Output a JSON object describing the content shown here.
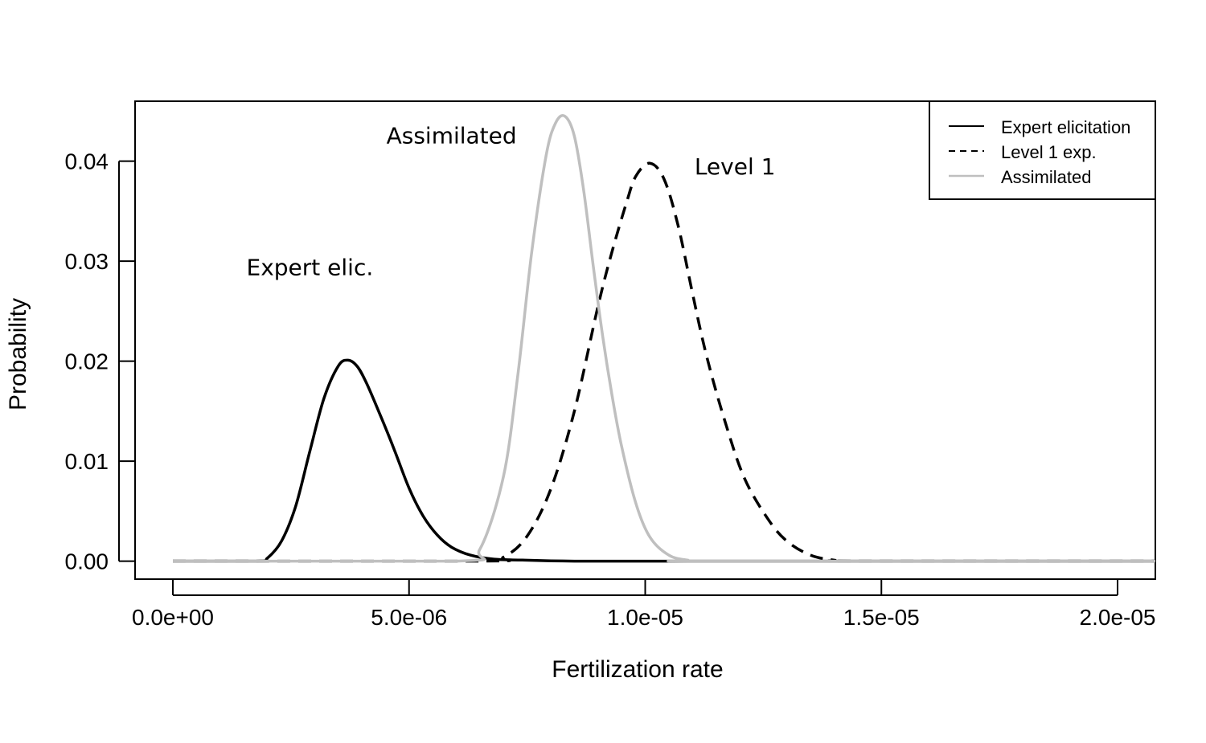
{
  "chart_data": {
    "type": "line",
    "xlabel": "Fertilization rate",
    "ylabel": "Probability",
    "xlim": [
      -8e-07,
      2.08e-05
    ],
    "ylim": [
      -0.0018,
      0.046
    ],
    "xticks": [
      0,
      5e-06,
      1e-05,
      1.5e-05,
      2e-05
    ],
    "xtick_labels": [
      "0.0e+00",
      "5.0e-06",
      "1.0e-05",
      "1.5e-05",
      "2.0e-05"
    ],
    "yticks": [
      0,
      0.01,
      0.02,
      0.03,
      0.04
    ],
    "ytick_labels": [
      "0.00",
      "0.01",
      "0.02",
      "0.03",
      "0.04"
    ],
    "grid": false,
    "legend_position": "top-right",
    "series": [
      {
        "name": "Expert elicitation",
        "color": "#000000",
        "style": "solid",
        "x": [
          0,
          1.8e-06,
          2e-06,
          2.3e-06,
          2.6e-06,
          2.9e-06,
          3.2e-06,
          3.5e-06,
          3.7e-06,
          3.9e-06,
          4.1e-06,
          4.4e-06,
          4.7e-06,
          5e-06,
          5.3e-06,
          5.6e-06,
          5.9e-06,
          6.3e-06,
          6.8e-06,
          7.4e-06,
          8.5e-06,
          1.1e-05,
          2.08e-05
        ],
        "y": [
          0,
          0,
          0.0003,
          0.002,
          0.0055,
          0.011,
          0.0163,
          0.0195,
          0.0201,
          0.0195,
          0.0178,
          0.0145,
          0.011,
          0.0073,
          0.0045,
          0.0026,
          0.0014,
          0.0006,
          0.0002,
          0.0001,
          0,
          0,
          0
        ]
      },
      {
        "name": "Level 1 exp.",
        "color": "#000000",
        "style": "dashed",
        "x": [
          0,
          6.5e-06,
          7e-06,
          7.5e-06,
          8e-06,
          8.5e-06,
          9e-06,
          9.3e-06,
          9.6e-06,
          9.8e-06,
          1.01e-05,
          1.04e-05,
          1.07e-05,
          1.1e-05,
          1.13e-05,
          1.17e-05,
          1.21e-05,
          1.26e-05,
          1.3e-05,
          1.35e-05,
          1.4e-05,
          1.45e-05,
          2.08e-05
        ],
        "y": [
          0,
          0,
          0.0004,
          0.0025,
          0.0072,
          0.015,
          0.0255,
          0.031,
          0.0358,
          0.0385,
          0.0398,
          0.0382,
          0.0335,
          0.0268,
          0.0205,
          0.0138,
          0.0083,
          0.0042,
          0.002,
          0.0006,
          0.0001,
          0,
          0
        ]
      },
      {
        "name": "Assimilated",
        "color": "#bfbfbf",
        "style": "solid",
        "x": [
          0,
          6e-06,
          6.5e-06,
          7e-06,
          7.3e-06,
          7.6e-06,
          7.9e-06,
          8.1e-06,
          8.3e-06,
          8.5e-06,
          8.7e-06,
          8.9e-06,
          9.1e-06,
          9.3e-06,
          9.5e-06,
          9.8e-06,
          1.01e-05,
          1.05e-05,
          1.09e-05,
          1.13e-05,
          2.08e-05
        ],
        "y": [
          0,
          0,
          0.0012,
          0.0085,
          0.0185,
          0.031,
          0.0405,
          0.0438,
          0.0445,
          0.0425,
          0.037,
          0.0295,
          0.0225,
          0.0165,
          0.0115,
          0.0058,
          0.0024,
          0.0006,
          0.0001,
          0,
          0
        ]
      }
    ],
    "annotations": [
      {
        "text": "Assimilated",
        "x": 5.9e-06,
        "y": 0.0418
      },
      {
        "text": "Level 1",
        "x": 1.19e-05,
        "y": 0.0387
      },
      {
        "text": "Expert elic.",
        "x": 2.9e-06,
        "y": 0.0286
      }
    ]
  }
}
